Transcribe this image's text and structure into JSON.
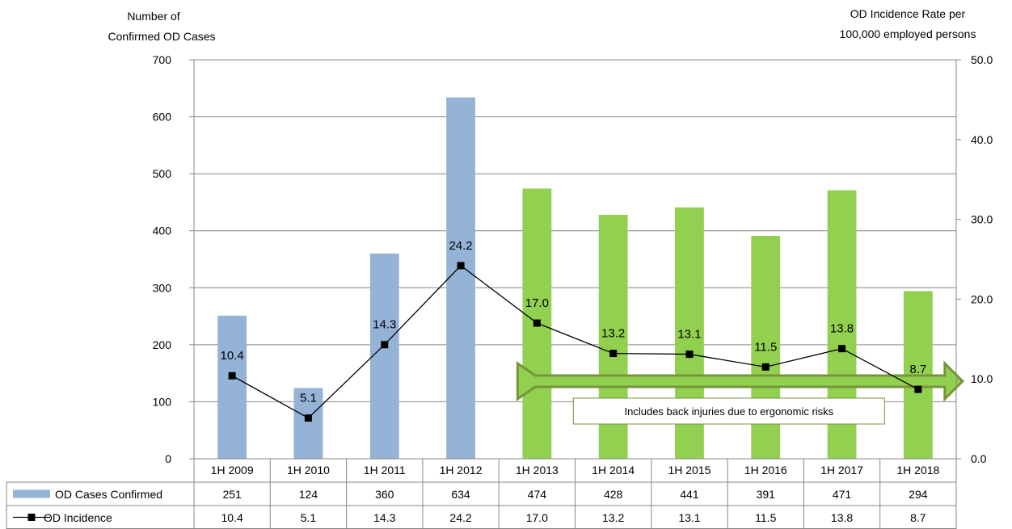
{
  "chart_data": {
    "type": "bar",
    "categories": [
      "1H  2009",
      "1H 2010",
      "1H  2011",
      "1H  2012",
      "1H  2013",
      "1H  2014",
      "1H  2015",
      "1H  2016",
      "1H  2017",
      "1H  2018"
    ],
    "series": [
      {
        "name": "OD Cases Confirmed",
        "type": "bar",
        "axis": "left",
        "values": [
          251,
          124,
          360,
          634,
          474,
          428,
          441,
          391,
          471,
          294
        ],
        "colors": [
          "#95b3d7",
          "#95b3d7",
          "#95b3d7",
          "#95b3d7",
          "#92d050",
          "#92d050",
          "#92d050",
          "#92d050",
          "#92d050",
          "#92d050"
        ]
      },
      {
        "name": "OD Incidence",
        "type": "line",
        "axis": "right",
        "values": [
          10.4,
          5.1,
          14.3,
          24.2,
          17.0,
          13.2,
          13.1,
          11.5,
          13.8,
          8.7
        ],
        "labels": [
          "10.4",
          "5.1",
          "14.3",
          "24.2",
          "17.0",
          "13.2",
          "13.1",
          "11.5",
          "13.8",
          "8.7"
        ],
        "color": "#000000"
      }
    ],
    "left_axis": {
      "label_line1": "Number of",
      "label_line2": "Confirmed OD Cases",
      "ylim": [
        0,
        700
      ],
      "ticks": [
        "0",
        "100",
        "200",
        "300",
        "400",
        "500",
        "600",
        "700"
      ]
    },
    "right_axis": {
      "label_line1": "OD Incidence Rate per",
      "label_line2": "100,000 employed persons",
      "ylim": [
        0,
        50
      ],
      "ticks": [
        "0.0",
        "10.0",
        "20.0",
        "30.0",
        "40.0",
        "50.0"
      ]
    },
    "data_table": {
      "rows": [
        {
          "label": "OD Cases Confirmed",
          "values": [
            "251",
            "124",
            "360",
            "634",
            "474",
            "428",
            "441",
            "391",
            "471",
            "294"
          ]
        },
        {
          "label": "OD Incidence",
          "values": [
            "10.4",
            "5.1",
            "14.3",
            "24.2",
            "17.0",
            "13.2",
            "13.1",
            "11.5",
            "13.8",
            "8.7"
          ]
        }
      ]
    },
    "annotation": {
      "text": "Includes back injuries due to ergonomic risks",
      "from_category": "1H  2013",
      "to_category": "1H  2018",
      "arrow_color": "#92d050",
      "arrow_border": "#77933c"
    },
    "grid": true,
    "gridline_color": "#868686"
  }
}
